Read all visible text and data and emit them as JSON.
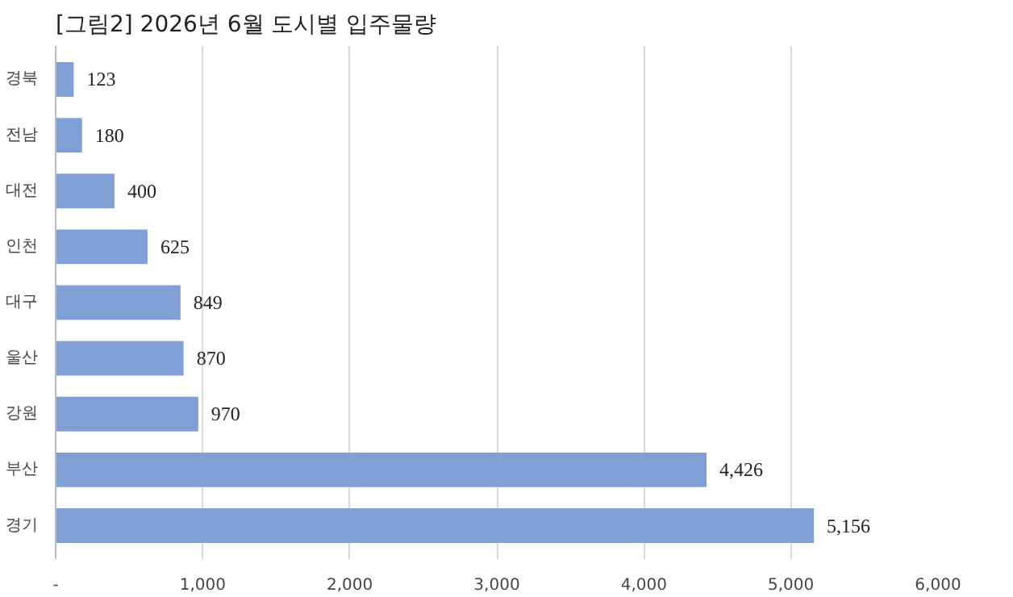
{
  "chart_data": {
    "type": "bar",
    "orientation": "horizontal",
    "title": "[그림2] 2026년 6월 도시별 입주물량",
    "categories": [
      "경북",
      "전남",
      "대전",
      "인천",
      "대구",
      "울산",
      "강원",
      "부산",
      "경기"
    ],
    "values": [
      123,
      180,
      400,
      625,
      849,
      870,
      970,
      4426,
      5156
    ],
    "value_labels": [
      "123",
      "180",
      "400",
      "625",
      "849",
      "870",
      "970",
      "4,426",
      "5,156"
    ],
    "color": "#7f9fd5",
    "xlim": [
      0,
      6000
    ],
    "xticks": [
      {
        "value": 0,
        "label": "-"
      },
      {
        "value": 1000,
        "label": "1,000"
      },
      {
        "value": 2000,
        "label": "2,000"
      },
      {
        "value": 3000,
        "label": "3,000"
      },
      {
        "value": 4000,
        "label": "4,000"
      },
      {
        "value": 5000,
        "label": "5,000"
      },
      {
        "value": 6000,
        "label": "6,000"
      }
    ],
    "grid": "x"
  }
}
